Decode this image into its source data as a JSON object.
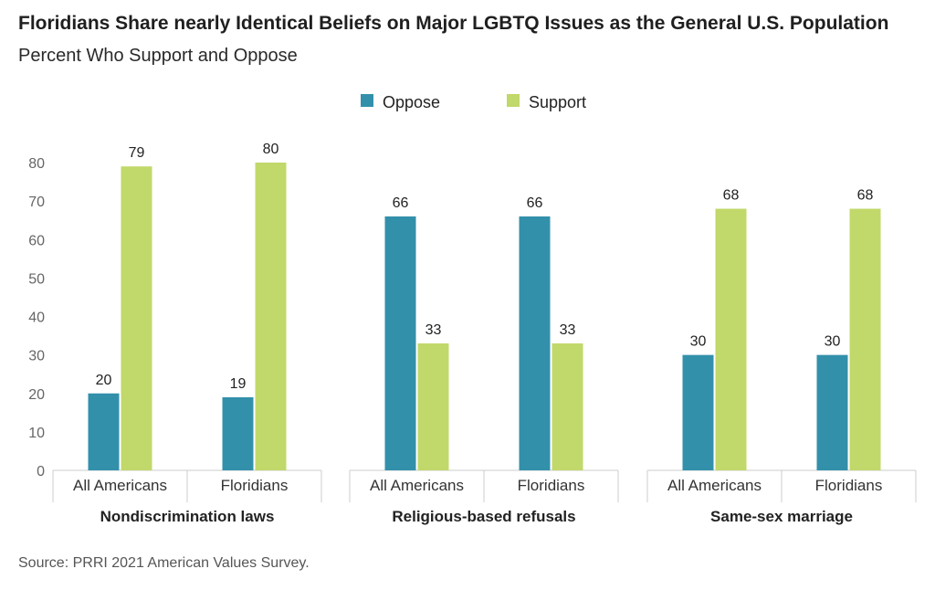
{
  "title": "Floridians Share nearly Identical Beliefs on Major LGBTQ Issues as the General U.S. Population",
  "subtitle": "Percent Who Support and Oppose",
  "source": "Source: PRRI 2021 American Values Survey.",
  "colors": {
    "oppose": "#3390ab",
    "support": "#c1d86a",
    "axis_text": "#666666",
    "label_text": "#222222"
  },
  "chart_data": {
    "type": "bar",
    "ylim": [
      0,
      80
    ],
    "yticks": [
      0,
      10,
      20,
      30,
      40,
      50,
      60,
      70,
      80
    ],
    "legend_position": "top-center",
    "grid": false,
    "series_names": [
      "Oppose",
      "Support"
    ],
    "groups": [
      {
        "label": "Nondiscrimination laws",
        "categories": [
          {
            "label": "All Americans",
            "oppose": 20,
            "support": 79
          },
          {
            "label": "Floridians",
            "oppose": 19,
            "support": 80
          }
        ]
      },
      {
        "label": "Religious-based refusals",
        "categories": [
          {
            "label": "All Americans",
            "oppose": 66,
            "support": 33
          },
          {
            "label": "Floridians",
            "oppose": 66,
            "support": 33
          }
        ]
      },
      {
        "label": "Same-sex marriage",
        "categories": [
          {
            "label": "All Americans",
            "oppose": 30,
            "support": 68
          },
          {
            "label": "Floridians",
            "oppose": 30,
            "support": 68
          }
        ]
      }
    ]
  }
}
